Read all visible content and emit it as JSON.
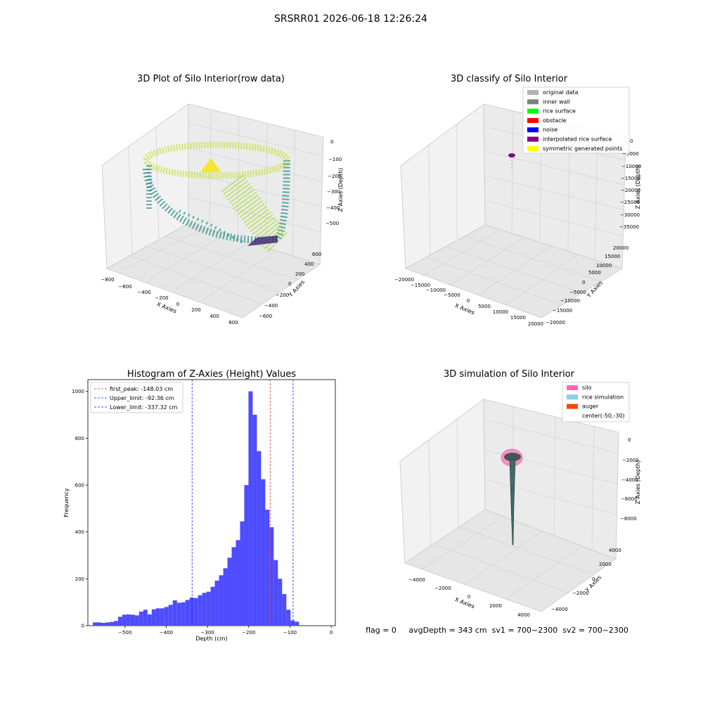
{
  "suptitle": "SRSRR01 2026-06-18 12:26:24",
  "colors": {
    "hist_bar": "#4d4dff",
    "peak_line": "#e03030",
    "limit_line": "#1a1aff",
    "pane": "#f2f2f2",
    "pane_grid": "#d0d0d0",
    "silo": "#ff69b4",
    "rice_sim": "#87ceeb",
    "auger": "#ff4500",
    "rice_dark": "#2f4f4f"
  },
  "chart_data": [
    {
      "type": "scatter",
      "subtype": "3d",
      "title": "3D Plot of Silo Interior(row data)",
      "xlabel": "X Axies",
      "ylabel": "Y Axies",
      "zlabel": "Z Axies (Depth)",
      "x_ticks": [
        "−800",
        "−600",
        "−400",
        "−200",
        "0",
        "200",
        "400",
        "600"
      ],
      "y_ticks": [
        "−600",
        "−400",
        "−200",
        "0",
        "200",
        "400",
        "600"
      ],
      "z_ticks": [
        "0",
        "−100",
        "−200",
        "−300",
        "−400",
        "−500"
      ],
      "xlim": [
        -800,
        600
      ],
      "ylim": [
        -600,
        600
      ],
      "zlim": [
        -550,
        0
      ],
      "colormap": "viridis"
    },
    {
      "type": "scatter",
      "subtype": "3d",
      "title": "3D classify of Silo Interior",
      "xlabel": "X Axies",
      "ylabel": "Y Axies",
      "zlabel": "Z Axies (Depth)",
      "x_ticks": [
        "−20000",
        "−15000",
        "−10000",
        "−5000",
        "0",
        "5000",
        "10000",
        "15000",
        "20000"
      ],
      "y_ticks": [
        "−20000",
        "−15000",
        "−10000",
        "−5000",
        "0",
        "5000",
        "10000",
        "15000",
        "20000"
      ],
      "z_ticks": [
        "0",
        "−5000",
        "−10000",
        "−15000",
        "−20000",
        "−25000",
        "−30000",
        "−35000"
      ],
      "xlim": [
        -20000,
        20000
      ],
      "ylim": [
        -20000,
        20000
      ],
      "zlim": [
        -37000,
        0
      ],
      "legend_position": "top-right",
      "legend": [
        {
          "label": "original data",
          "color": "#b3b3b3"
        },
        {
          "label": "inner wall",
          "color": "#808080"
        },
        {
          "label": "rice surface",
          "color": "#00ff00"
        },
        {
          "label": "obstacle",
          "color": "#ff0000"
        },
        {
          "label": "noise",
          "color": "#0000ff"
        },
        {
          "label": "interpolated rice surface",
          "color": "#800080"
        },
        {
          "label": "symmetric generated points",
          "color": "#ffff00"
        }
      ]
    },
    {
      "type": "bar",
      "subtype": "histogram",
      "title": "Histogram of Z-Axies (Height) Values",
      "xlabel": "Depth (cm)",
      "ylabel": "Frequency",
      "xlim": [
        -590,
        10
      ],
      "ylim": [
        0,
        1050
      ],
      "x_ticks": [
        -500,
        -400,
        -300,
        -200,
        -100,
        0
      ],
      "x_tick_labels": [
        "−500",
        "−400",
        "−300",
        "−200",
        "−100",
        "0"
      ],
      "y_ticks": [
        0,
        200,
        400,
        600,
        800,
        1000
      ],
      "y_tick_labels": [
        "0",
        "200",
        "400",
        "600",
        "800",
        "1000"
      ],
      "bin_start": -578,
      "bin_width": 10.2,
      "values": [
        14,
        14,
        12,
        14,
        16,
        20,
        38,
        47,
        48,
        47,
        44,
        60,
        68,
        48,
        70,
        74,
        74,
        80,
        89,
        108,
        98,
        100,
        110,
        120,
        118,
        130,
        140,
        145,
        166,
        192,
        215,
        245,
        290,
        335,
        365,
        445,
        600,
        1000,
        900,
        745,
        625,
        495,
        420,
        280,
        200,
        135,
        68,
        22,
        17
      ],
      "vlines": [
        {
          "label": "first_peak: -148.03 cm",
          "x": -148.03,
          "color": "#e03030"
        },
        {
          "label": "Upper_limit: -92.36 cm",
          "x": -92.36,
          "color": "#1a1aff"
        },
        {
          "label": "Lower_limit: -337.32 cm",
          "x": -337.32,
          "color": "#1a1aff"
        }
      ],
      "legend_position": "top-left"
    },
    {
      "type": "area",
      "subtype": "3d-surface",
      "title": "3D simulation of Silo Interior",
      "xlabel": "X Axies",
      "ylabel": "Y Axies",
      "zlabel": "Z Axies (Depth)",
      "x_ticks": [
        "−4000",
        "−2000",
        "0",
        "2000",
        "4000"
      ],
      "y_ticks": [
        "−4000",
        "−2000",
        "0",
        "2000",
        "4000"
      ],
      "z_ticks": [
        "0",
        "−2000",
        "−4000",
        "−6000",
        "−8000"
      ],
      "xlim": [
        -5000,
        5000
      ],
      "ylim": [
        -5000,
        5000
      ],
      "zlim": [
        -9500,
        0
      ],
      "legend_position": "top-right",
      "legend": [
        {
          "label": "silo",
          "color": "#ff69b4"
        },
        {
          "label": "rice simulation",
          "color": "#87ceeb"
        },
        {
          "label": "auger",
          "color": "#ff4500"
        },
        {
          "label": "center(-50,-30)",
          "color": ""
        }
      ]
    }
  ],
  "status_text": "flag = 0     avgDepth = 343 cm  sv1 = 700~2300  sv2 = 700~2300"
}
